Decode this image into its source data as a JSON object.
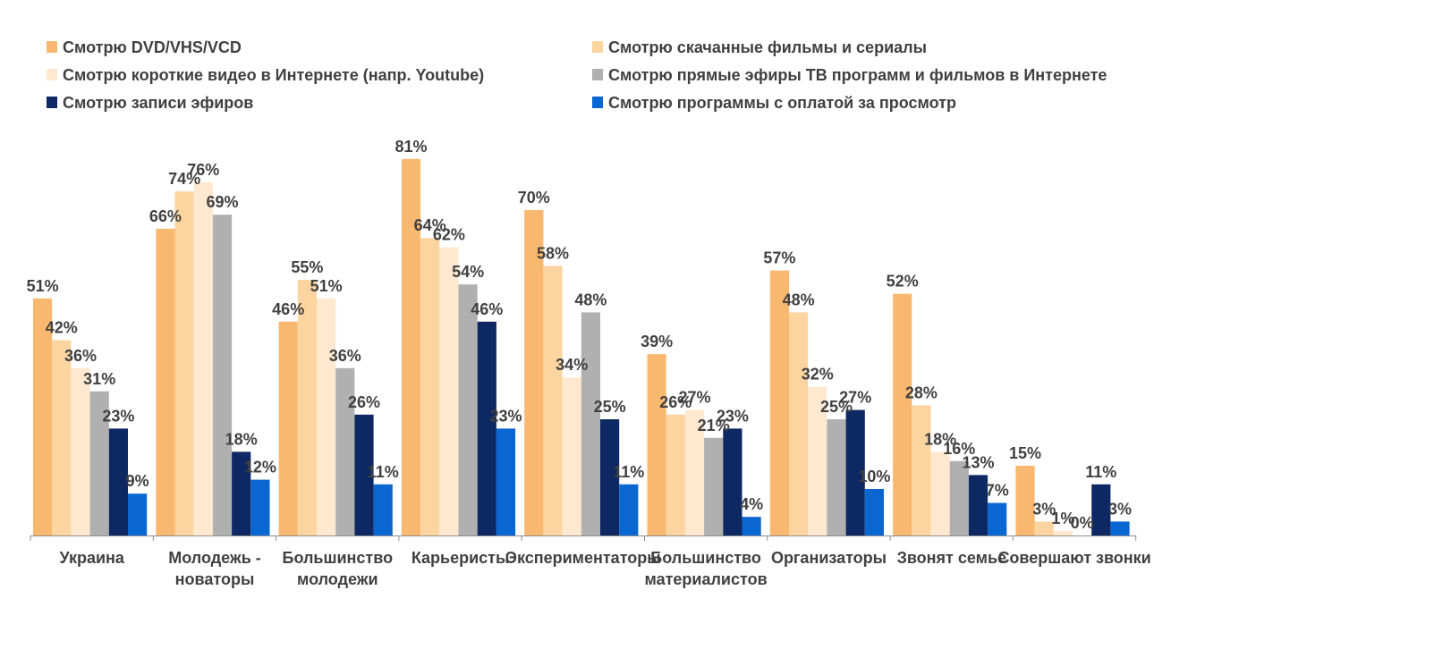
{
  "chart_data": {
    "type": "bar",
    "title": "",
    "xlabel": "",
    "ylabel": "",
    "ylim": [
      0,
      100
    ],
    "grid": false,
    "legend_position": "top",
    "categories": [
      [
        "Украина"
      ],
      [
        "Молодежь -",
        "новаторы"
      ],
      [
        "Большинство",
        "молодежи"
      ],
      [
        "Карьеристы"
      ],
      [
        "Экспериментаторы"
      ],
      [
        "Большинство",
        "материалистов"
      ],
      [
        "Организаторы"
      ],
      [
        "Звонят семье"
      ],
      [
        "Совершают звонки"
      ]
    ],
    "series": [
      {
        "name": "Смотрю DVD/VHS/VCD",
        "color": "#F9B870",
        "values": [
          51,
          66,
          46,
          81,
          70,
          39,
          57,
          52,
          15
        ]
      },
      {
        "name": "Смотрю скачанные фильмы и сериалы",
        "color": "#FCD4A0",
        "values": [
          42,
          74,
          55,
          64,
          58,
          26,
          48,
          28,
          3
        ]
      },
      {
        "name": "Смотрю короткие видео в Интернете (напр. Youtube)",
        "color": "#FEE9D0",
        "values": [
          36,
          76,
          51,
          62,
          34,
          27,
          32,
          18,
          1
        ]
      },
      {
        "name": "Смотрю прямые эфиры ТВ программ и фильмов в Интернете",
        "color": "#B0B0B0",
        "values": [
          31,
          69,
          36,
          54,
          48,
          21,
          25,
          16,
          0
        ]
      },
      {
        "name": "Смотрю записи эфиров",
        "color": "#0D2862",
        "values": [
          23,
          18,
          26,
          46,
          25,
          23,
          27,
          13,
          11
        ]
      },
      {
        "name": "Смотрю программы с оплатой за просмотр",
        "color": "#0A66D0",
        "values": [
          9,
          12,
          11,
          23,
          11,
          4,
          10,
          7,
          3
        ]
      }
    ]
  }
}
